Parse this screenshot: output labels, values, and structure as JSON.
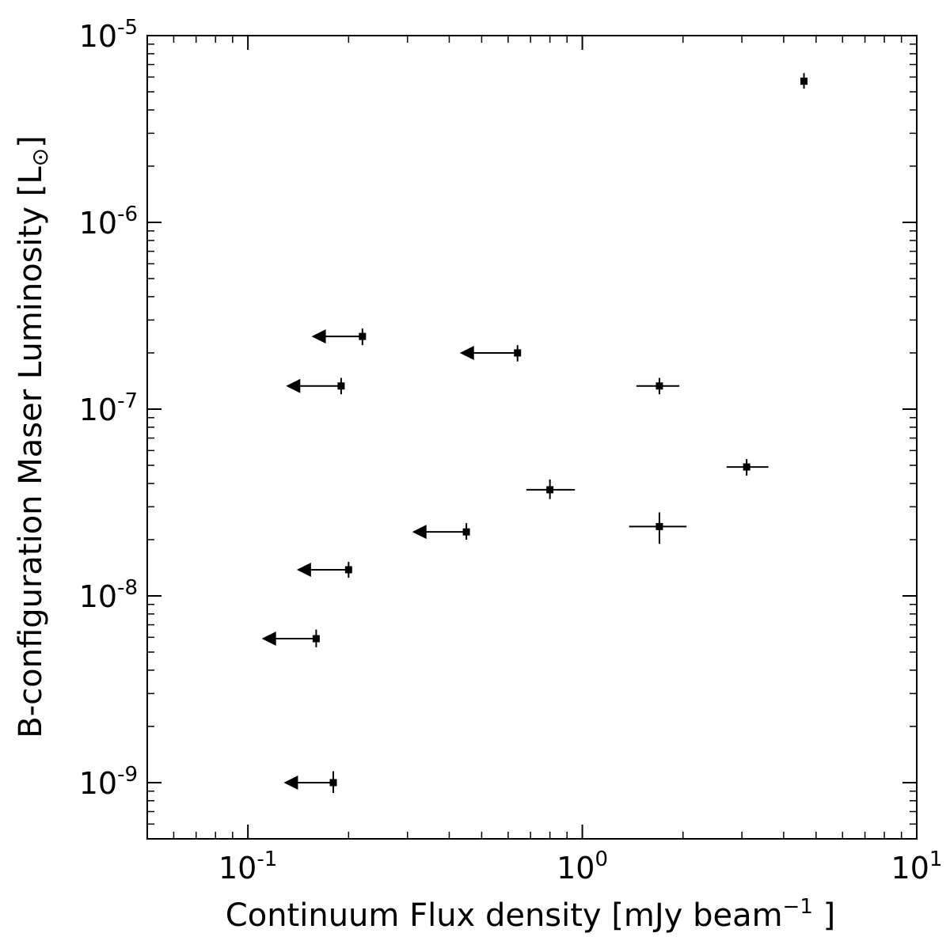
{
  "chart_data": {
    "type": "scatter",
    "xlabel": "Continuum Flux density [mJy beam",
    "xlabel_superscript": "−1",
    "xlabel_suffix": " ]",
    "ylabel": "B-configuration Maser Luminosity [L",
    "ylabel_symbol": "⊙",
    "ylabel_suffix": "]",
    "xscale": "log",
    "yscale": "log",
    "xlim": [
      0.05,
      10
    ],
    "ylim": [
      5e-10,
      1e-05
    ],
    "x_ticks": [
      {
        "value": 0.1,
        "base": "10",
        "exp": "-1"
      },
      {
        "value": 1,
        "base": "10",
        "exp": "0"
      },
      {
        "value": 10,
        "base": "10",
        "exp": "1"
      }
    ],
    "y_ticks": [
      {
        "value": 1e-09,
        "base": "10",
        "exp": "-9"
      },
      {
        "value": 1e-08,
        "base": "10",
        "exp": "-8"
      },
      {
        "value": 1e-07,
        "base": "10",
        "exp": "-7"
      },
      {
        "value": 1e-06,
        "base": "10",
        "exp": "-6"
      },
      {
        "value": 1e-05,
        "base": "10",
        "exp": "-5"
      }
    ],
    "grid": false,
    "legend": "none",
    "points": [
      {
        "x": 4.6,
        "y": 5.7e-06,
        "yerr_lo": 5.2e-06,
        "yerr_hi": 6.3e-06
      },
      {
        "x": 0.22,
        "y": 2.45e-07,
        "xarrow_to": 0.155,
        "yerr_lo": 2.2e-07,
        "yerr_hi": 2.7e-07
      },
      {
        "x": 0.64,
        "y": 2e-07,
        "xarrow_to": 0.43,
        "yerr_lo": 1.8e-07,
        "yerr_hi": 2.2e-07
      },
      {
        "x": 0.19,
        "y": 1.33e-07,
        "xarrow_to": 0.13,
        "yerr_lo": 1.2e-07,
        "yerr_hi": 1.47e-07
      },
      {
        "x": 1.7,
        "y": 1.33e-07,
        "xerr_lo": 1.45,
        "xerr_hi": 1.95,
        "yerr_lo": 1.2e-07,
        "yerr_hi": 1.47e-07
      },
      {
        "x": 3.1,
        "y": 4.9e-08,
        "xerr_lo": 2.7,
        "xerr_hi": 3.6,
        "yerr_lo": 4.4e-08,
        "yerr_hi": 5.4e-08
      },
      {
        "x": 0.8,
        "y": 3.7e-08,
        "xerr_lo": 0.68,
        "xerr_hi": 0.95,
        "yerr_lo": 3.3e-08,
        "yerr_hi": 4.2e-08
      },
      {
        "x": 1.7,
        "y": 2.35e-08,
        "xerr_lo": 1.38,
        "xerr_hi": 2.05,
        "yerr_lo": 1.9e-08,
        "yerr_hi": 2.8e-08
      },
      {
        "x": 0.45,
        "y": 2.2e-08,
        "xarrow_to": 0.31,
        "yerr_lo": 2e-08,
        "yerr_hi": 2.45e-08
      },
      {
        "x": 0.2,
        "y": 1.38e-08,
        "xarrow_to": 0.14,
        "yerr_lo": 1.25e-08,
        "yerr_hi": 1.52e-08
      },
      {
        "x": 0.16,
        "y": 5.9e-09,
        "xarrow_to": 0.11,
        "yerr_lo": 5.3e-09,
        "yerr_hi": 6.6e-09
      },
      {
        "x": 0.18,
        "y": 1e-09,
        "xarrow_to": 0.128,
        "yerr_lo": 8.8e-10,
        "yerr_hi": 1.15e-09
      }
    ]
  }
}
